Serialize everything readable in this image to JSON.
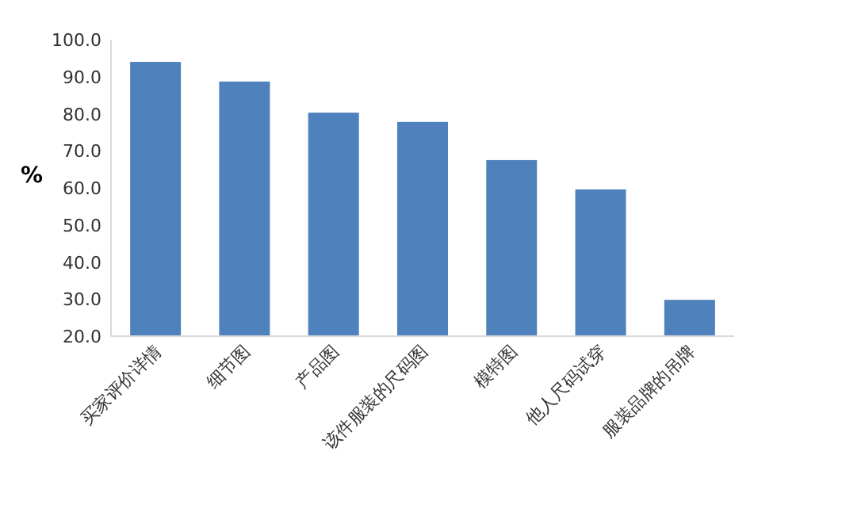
{
  "chart_data": {
    "type": "bar",
    "ylabel": "%",
    "categories": [
      "买家评价详情",
      "细节图",
      "产品图",
      "该件服装的尺码图",
      "模特图",
      "他人尺码试穿",
      "服装品牌的吊牌"
    ],
    "values": [
      94.0,
      88.7,
      80.3,
      77.8,
      67.5,
      59.6,
      29.8
    ],
    "color": "#4f81bd",
    "ylim": [
      20,
      100
    ],
    "yticks": [
      {
        "value": 20,
        "label": "20.0"
      },
      {
        "value": 30,
        "label": "30.0"
      },
      {
        "value": 40,
        "label": "40.0"
      },
      {
        "value": 50,
        "label": "50.0"
      },
      {
        "value": 60,
        "label": "60.0"
      },
      {
        "value": 70,
        "label": "70.0"
      },
      {
        "value": 80,
        "label": "80.0"
      },
      {
        "value": 90,
        "label": "90.0"
      },
      {
        "value": 100,
        "label": "100.0"
      }
    ],
    "grid": false
  }
}
